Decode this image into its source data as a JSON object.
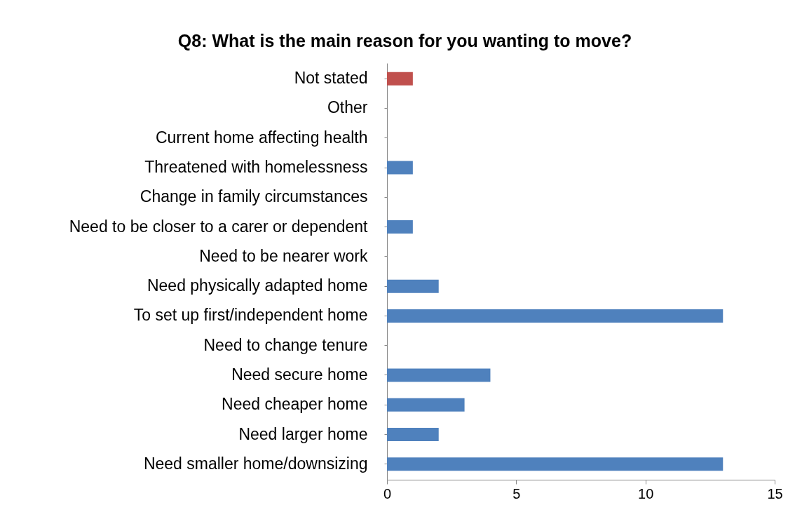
{
  "chart_data": {
    "type": "bar",
    "orientation": "horizontal",
    "title": "Q8: What is the main reason for you wanting to move?",
    "categories": [
      "Not stated",
      "Other",
      "Current home affecting health",
      "Threatened with homelessness",
      "Change in family circumstances",
      "Need to be closer to a carer or dependent",
      "Need to be nearer work",
      "Need physically adapted home",
      "To set up first/independent home",
      "Need to change tenure",
      "Need secure home",
      "Need cheaper home",
      "Need larger home",
      "Need smaller home/downsizing"
    ],
    "values": [
      1,
      0,
      0,
      1,
      0,
      1,
      0,
      2,
      13,
      0,
      4,
      3,
      2,
      13
    ],
    "colors": [
      "#c0504d",
      "#4f81bd",
      "#4f81bd",
      "#4f81bd",
      "#4f81bd",
      "#4f81bd",
      "#4f81bd",
      "#4f81bd",
      "#4f81bd",
      "#4f81bd",
      "#4f81bd",
      "#4f81bd",
      "#4f81bd",
      "#4f81bd"
    ],
    "xlim": [
      0,
      15
    ],
    "xticks": [
      0,
      5,
      10,
      15
    ],
    "grid": false
  }
}
